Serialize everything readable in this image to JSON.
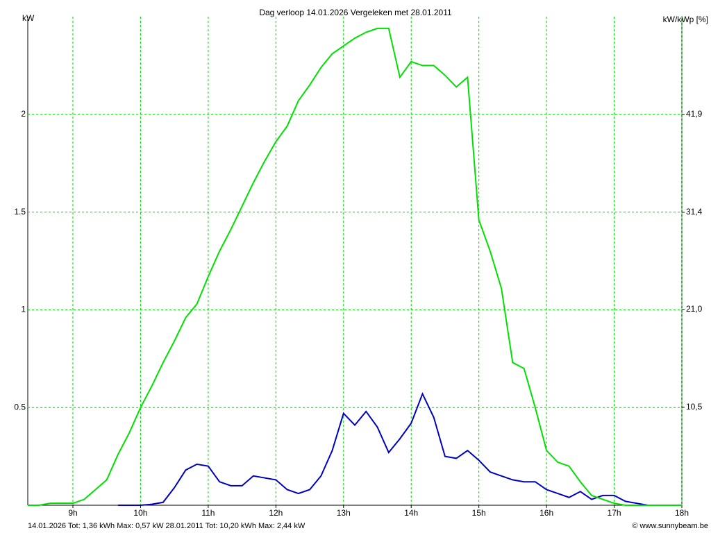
{
  "chart_data": {
    "type": "line",
    "title": "Dag  verloop 14.01.2026   Vergeleken met 28.01.2011",
    "y_label": "kW",
    "y2_label": "kW/kWp [%]",
    "copyright": "© www.sunnybeam.be",
    "x": [
      8.333,
      8.5,
      8.667,
      8.833,
      9,
      9.167,
      9.333,
      9.5,
      9.667,
      9.833,
      10,
      10.167,
      10.333,
      10.5,
      10.667,
      10.833,
      11,
      11.167,
      11.333,
      11.5,
      11.667,
      11.833,
      12,
      12.167,
      12.333,
      12.5,
      12.667,
      12.833,
      13,
      13.167,
      13.333,
      13.5,
      13.667,
      13.833,
      14,
      14.167,
      14.333,
      14.5,
      14.667,
      14.833,
      15,
      15.167,
      15.333,
      15.5,
      15.667,
      15.833,
      16,
      16.167,
      16.333,
      16.5,
      16.667,
      16.833,
      17,
      17.167,
      17.333,
      17.5,
      17.667,
      17.833,
      18
    ],
    "series": [
      {
        "name": "14.01.2026 Tot: 1,36 kWh Max: 0,57 kW",
        "color": "#0000c0",
        "values": [
          null,
          null,
          null,
          null,
          null,
          null,
          null,
          null,
          0,
          0,
          0,
          0.005,
          0.015,
          0.09,
          0.18,
          0.21,
          0.2,
          0.12,
          0.1,
          0.1,
          0.15,
          0.14,
          0.13,
          0.08,
          0.06,
          0.08,
          0.15,
          0.28,
          0.47,
          0.41,
          0.48,
          0.4,
          0.27,
          0.34,
          0.42,
          0.57,
          0.45,
          0.25,
          0.24,
          0.28,
          0.23,
          0.17,
          0.15,
          0.13,
          0.12,
          0.12,
          0.08,
          0.06,
          0.04,
          0.07,
          0.03,
          0.05,
          0.05,
          0.02,
          0.01,
          0,
          0,
          0,
          0
        ]
      },
      {
        "name": "28.01.2011 Tot: 10,20 kWh Max: 2,44 kW",
        "color": "#00e000",
        "values": [
          0,
          0,
          0.01,
          0.01,
          0.01,
          0.03,
          0.08,
          0.13,
          0.26,
          0.37,
          0.5,
          0.61,
          0.73,
          0.84,
          0.96,
          1.03,
          1.17,
          1.3,
          1.41,
          1.53,
          1.65,
          1.76,
          1.86,
          1.94,
          2.07,
          2.15,
          2.24,
          2.31,
          2.35,
          2.39,
          2.42,
          2.44,
          2.44,
          2.19,
          2.27,
          2.25,
          2.25,
          2.2,
          2.14,
          2.19,
          1.46,
          1.3,
          1.11,
          0.73,
          0.7,
          0.5,
          0.28,
          0.22,
          0.2,
          0.12,
          0.05,
          0.03,
          0.01,
          0,
          0,
          0,
          0,
          0,
          0
        ]
      }
    ],
    "xlim": [
      8.333,
      18
    ],
    "xticks": [
      {
        "value": 9,
        "label": "9h"
      },
      {
        "value": 10,
        "label": "10h"
      },
      {
        "value": 11,
        "label": "11h"
      },
      {
        "value": 12,
        "label": "12h"
      },
      {
        "value": 13,
        "label": "13h"
      },
      {
        "value": 14,
        "label": "14h"
      },
      {
        "value": 15,
        "label": "15h"
      },
      {
        "value": 16,
        "label": "16h"
      },
      {
        "value": 17,
        "label": "17h"
      },
      {
        "value": 18,
        "label": "18h"
      }
    ],
    "ylim": [
      0,
      2.5
    ],
    "yticks": [
      0.5,
      1,
      1.5,
      2
    ],
    "y2lim": [
      0,
      52.375
    ],
    "y2ticks": [
      {
        "value": 10.5,
        "label": "10,5"
      },
      {
        "value": 21.0,
        "label": "21,0"
      },
      {
        "value": 31.4,
        "label": "31,4"
      },
      {
        "value": 41.9,
        "label": "41,9"
      }
    ],
    "grid": true,
    "grid_color": "#00d000"
  }
}
